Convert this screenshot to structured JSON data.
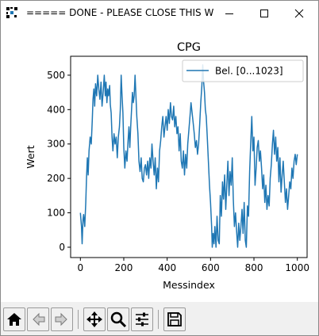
{
  "window": {
    "title": "===== DONE - PLEASE CLOSE THIS WIN...",
    "icon": "matplotlib-figure-icon"
  },
  "controls": {
    "minimize_icon": "minimize-icon",
    "maximize_icon": "maximize-icon",
    "close_icon": "close-icon"
  },
  "toolbar": {
    "buttons": [
      {
        "name": "home",
        "icon": "home-icon"
      },
      {
        "name": "back",
        "icon": "back-arrow-icon"
      },
      {
        "name": "forward",
        "icon": "forward-arrow-icon"
      },
      {
        "name": "pan",
        "icon": "move-arrows-icon"
      },
      {
        "name": "zoom",
        "icon": "magnifier-icon"
      },
      {
        "name": "configure-subplots",
        "icon": "sliders-icon"
      },
      {
        "name": "save",
        "icon": "floppy-disk-icon"
      }
    ]
  },
  "colors": {
    "line": "#1f77b4",
    "axis": "#000000",
    "legend_border": "#cccccc"
  },
  "chart_data": {
    "type": "line",
    "title": "CPG",
    "xlabel": "Messindex",
    "ylabel": "Wert",
    "xlim": [
      -45,
      1045
    ],
    "ylim": [
      -30,
      555
    ],
    "xticks": [
      0,
      200,
      400,
      600,
      800,
      1000
    ],
    "yticks": [
      0,
      100,
      200,
      300,
      400,
      500
    ],
    "grid": false,
    "legend": {
      "placement": "top-right"
    },
    "series": [
      {
        "name": "Bel. [0...1023]",
        "color": "#1f77b4",
        "points": [
          [
            0,
            100
          ],
          [
            5,
            60
          ],
          [
            8,
            10
          ],
          [
            12,
            80
          ],
          [
            15,
            95
          ],
          [
            20,
            60
          ],
          [
            25,
            130
          ],
          [
            28,
            200
          ],
          [
            32,
            260
          ],
          [
            36,
            210
          ],
          [
            40,
            280
          ],
          [
            45,
            320
          ],
          [
            50,
            300
          ],
          [
            55,
            370
          ],
          [
            58,
            430
          ],
          [
            62,
            460
          ],
          [
            66,
            410
          ],
          [
            70,
            475
          ],
          [
            75,
            440
          ],
          [
            80,
            500
          ],
          [
            85,
            460
          ],
          [
            90,
            430
          ],
          [
            95,
            480
          ],
          [
            100,
            410
          ],
          [
            105,
            450
          ],
          [
            110,
            500
          ],
          [
            115,
            440
          ],
          [
            118,
            480
          ],
          [
            122,
            420
          ],
          [
            126,
            460
          ],
          [
            130,
            440
          ],
          [
            135,
            470
          ],
          [
            138,
            415
          ],
          [
            142,
            390
          ],
          [
            146,
            320
          ],
          [
            150,
            280
          ],
          [
            155,
            330
          ],
          [
            160,
            300
          ],
          [
            165,
            320
          ],
          [
            170,
            260
          ],
          [
            175,
            320
          ],
          [
            180,
            350
          ],
          [
            184,
            400
          ],
          [
            188,
            500
          ],
          [
            192,
            440
          ],
          [
            196,
            390
          ],
          [
            200,
            290
          ],
          [
            205,
            230
          ],
          [
            210,
            280
          ],
          [
            215,
            250
          ],
          [
            220,
            310
          ],
          [
            224,
            350
          ],
          [
            228,
            290
          ],
          [
            232,
            350
          ],
          [
            236,
            400
          ],
          [
            240,
            450
          ],
          [
            244,
            420
          ],
          [
            248,
            440
          ],
          [
            252,
            500
          ],
          [
            256,
            440
          ],
          [
            260,
            380
          ],
          [
            265,
            330
          ],
          [
            270,
            250
          ],
          [
            275,
            220
          ],
          [
            280,
            260
          ],
          [
            285,
            200
          ],
          [
            290,
            190
          ],
          [
            295,
            230
          ],
          [
            300,
            240
          ],
          [
            305,
            210
          ],
          [
            310,
            250
          ],
          [
            315,
            200
          ],
          [
            320,
            260
          ],
          [
            325,
            230
          ],
          [
            330,
            300
          ],
          [
            335,
            250
          ],
          [
            340,
            210
          ],
          [
            345,
            260
          ],
          [
            350,
            170
          ],
          [
            355,
            230
          ],
          [
            360,
            190
          ],
          [
            365,
            280
          ],
          [
            370,
            310
          ],
          [
            375,
            350
          ],
          [
            380,
            380
          ],
          [
            385,
            320
          ],
          [
            390,
            350
          ],
          [
            395,
            380
          ],
          [
            400,
            340
          ],
          [
            405,
            400
          ],
          [
            410,
            360
          ],
          [
            415,
            420
          ],
          [
            420,
            380
          ],
          [
            425,
            370
          ],
          [
            430,
            410
          ],
          [
            435,
            350
          ],
          [
            440,
            380
          ],
          [
            445,
            330
          ],
          [
            450,
            350
          ],
          [
            455,
            280
          ],
          [
            460,
            330
          ],
          [
            465,
            250
          ],
          [
            470,
            230
          ],
          [
            475,
            280
          ],
          [
            480,
            210
          ],
          [
            485,
            270
          ],
          [
            490,
            230
          ],
          [
            495,
            300
          ],
          [
            500,
            340
          ],
          [
            505,
            380
          ],
          [
            510,
            420
          ],
          [
            515,
            390
          ],
          [
            520,
            360
          ],
          [
            525,
            330
          ],
          [
            530,
            290
          ],
          [
            535,
            310
          ],
          [
            540,
            270
          ],
          [
            545,
            300
          ],
          [
            550,
            360
          ],
          [
            555,
            420
          ],
          [
            560,
            470
          ],
          [
            564,
            530
          ],
          [
            568,
            480
          ],
          [
            572,
            450
          ],
          [
            576,
            400
          ],
          [
            580,
            380
          ],
          [
            585,
            320
          ],
          [
            590,
            250
          ],
          [
            595,
            180
          ],
          [
            600,
            130
          ],
          [
            605,
            60
          ],
          [
            608,
            0
          ],
          [
            612,
            40
          ],
          [
            616,
            10
          ],
          [
            620,
            60
          ],
          [
            625,
            0
          ],
          [
            630,
            90
          ],
          [
            635,
            20
          ],
          [
            640,
            10
          ],
          [
            645,
            150
          ],
          [
            650,
            90
          ],
          [
            655,
            190
          ],
          [
            660,
            140
          ],
          [
            665,
            210
          ],
          [
            670,
            110
          ],
          [
            675,
            180
          ],
          [
            680,
            250
          ],
          [
            685,
            150
          ],
          [
            690,
            220
          ],
          [
            695,
            180
          ],
          [
            700,
            260
          ],
          [
            705,
            140
          ],
          [
            710,
            60
          ],
          [
            715,
            100
          ],
          [
            720,
            50
          ],
          [
            725,
            0
          ],
          [
            730,
            70
          ],
          [
            735,
            20
          ],
          [
            740,
            60
          ],
          [
            745,
            110
          ],
          [
            750,
            40
          ],
          [
            755,
            130
          ],
          [
            760,
            20
          ],
          [
            765,
            0
          ],
          [
            770,
            120
          ],
          [
            775,
            90
          ],
          [
            780,
            220
          ],
          [
            785,
            300
          ],
          [
            790,
            380
          ],
          [
            795,
            280
          ],
          [
            800,
            320
          ],
          [
            805,
            180
          ],
          [
            810,
            230
          ],
          [
            815,
            290
          ],
          [
            820,
            310
          ],
          [
            825,
            250
          ],
          [
            830,
            280
          ],
          [
            835,
            230
          ],
          [
            840,
            170
          ],
          [
            845,
            210
          ],
          [
            850,
            130
          ],
          [
            855,
            180
          ],
          [
            860,
            110
          ],
          [
            865,
            150
          ],
          [
            870,
            120
          ],
          [
            875,
            200
          ],
          [
            880,
            240
          ],
          [
            885,
            300
          ],
          [
            890,
            340
          ],
          [
            895,
            270
          ],
          [
            900,
            320
          ],
          [
            905,
            250
          ],
          [
            910,
            290
          ],
          [
            915,
            190
          ],
          [
            920,
            260
          ],
          [
            925,
            160
          ],
          [
            930,
            210
          ],
          [
            935,
            250
          ],
          [
            940,
            190
          ],
          [
            945,
            130
          ],
          [
            950,
            170
          ],
          [
            955,
            110
          ],
          [
            960,
            150
          ],
          [
            965,
            190
          ],
          [
            970,
            170
          ],
          [
            975,
            230
          ],
          [
            980,
            200
          ],
          [
            985,
            250
          ],
          [
            990,
            270
          ],
          [
            995,
            240
          ],
          [
            1000,
            270
          ]
        ]
      }
    ]
  }
}
